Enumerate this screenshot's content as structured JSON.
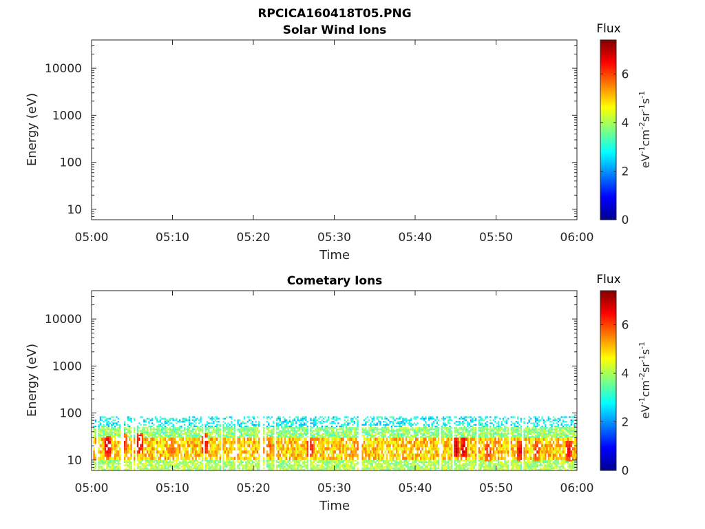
{
  "figure": {
    "title": "RPCICA160418T05.PNG"
  },
  "colorbar": {
    "title": "Flux",
    "label_base": "eV",
    "label_sup1": "-1",
    "label_mid1": "cm",
    "label_sup2": "-2",
    "label_mid2": "sr",
    "label_sup3": "-1",
    "label_mid3": "s",
    "label_sup4": "-1",
    "ticks": [
      "0",
      "2",
      "4",
      "6"
    ],
    "range": [
      0,
      7.4
    ],
    "colormap": "jet"
  },
  "chart_data": [
    {
      "type": "heatmap",
      "title": "Solar Wind Ions",
      "xlabel": "Time",
      "ylabel": "Energy (eV)",
      "x_tick_labels": [
        "05:00",
        "05:10",
        "05:20",
        "05:30",
        "05:40",
        "05:50",
        "06:00"
      ],
      "xlim": [
        "05:00",
        "06:00"
      ],
      "y_scale": "log",
      "y_tick_labels": [
        "10",
        "100",
        "1000",
        "10000"
      ],
      "y_ticks": [
        10,
        100,
        1000,
        10000
      ],
      "ylim": [
        6,
        40000
      ],
      "clim": [
        0,
        7.4
      ],
      "colorbar_label": "Flux (eV^-1 cm^-2 sr^-1 s^-1)",
      "description": "No significant flux recorded in interval",
      "bands": []
    },
    {
      "type": "heatmap",
      "title": "Cometary Ions",
      "xlabel": "Time",
      "ylabel": "Energy (eV)",
      "x_tick_labels": [
        "05:00",
        "05:10",
        "05:20",
        "05:30",
        "05:40",
        "05:50",
        "06:00"
      ],
      "xlim": [
        "05:00",
        "06:00"
      ],
      "y_scale": "log",
      "y_tick_labels": [
        "10",
        "100",
        "1000",
        "10000"
      ],
      "y_ticks": [
        10,
        100,
        1000,
        10000
      ],
      "ylim": [
        6,
        40000
      ],
      "clim": [
        0,
        7.4
      ],
      "colorbar_label": "Flux (eV^-1 cm^-2 sr^-1 s^-1)",
      "bands": [
        {
          "energy_range_eV": [
            6,
            10
          ],
          "flux": 4.0
        },
        {
          "energy_range_eV": [
            10,
            30
          ],
          "flux": 5.0
        },
        {
          "energy_range_eV": [
            30,
            50
          ],
          "flux": 3.8
        },
        {
          "energy_range_eV": [
            50,
            85
          ],
          "flux": 2.8
        }
      ],
      "peaks": [
        {
          "time": "05:02",
          "energy_eV": 20,
          "flux": 7.0
        },
        {
          "time": "05:04",
          "energy_eV": 22,
          "flux": 6.5
        },
        {
          "time": "05:06",
          "energy_eV": 22,
          "flux": 7.0
        },
        {
          "time": "05:10",
          "energy_eV": 18,
          "flux": 6.0
        },
        {
          "time": "05:14",
          "energy_eV": 22,
          "flux": 6.8
        },
        {
          "time": "05:22",
          "energy_eV": 20,
          "flux": 6.0
        },
        {
          "time": "05:27",
          "energy_eV": 18,
          "flux": 6.8
        },
        {
          "time": "05:33",
          "energy_eV": 18,
          "flux": 6.0
        },
        {
          "time": "05:45",
          "energy_eV": 18,
          "flux": 7.2
        },
        {
          "time": "05:46",
          "energy_eV": 18,
          "flux": 7.0
        },
        {
          "time": "05:49",
          "energy_eV": 16,
          "flux": 6.5
        },
        {
          "time": "05:53",
          "energy_eV": 16,
          "flux": 6.8
        },
        {
          "time": "05:55",
          "energy_eV": 16,
          "flux": 6.5
        },
        {
          "time": "05:59",
          "energy_eV": 16,
          "flux": 6.8
        }
      ]
    }
  ]
}
